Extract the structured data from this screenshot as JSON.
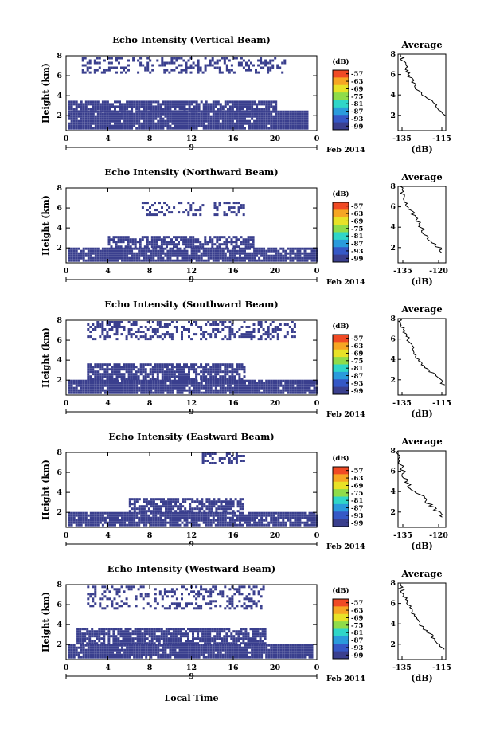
{
  "shared": {
    "x_ticks": [
      "0",
      "4",
      "8",
      "12",
      "16",
      "20",
      "0"
    ],
    "day_label": "9",
    "date_label": "Feb 2014",
    "y_label": "Height (km)",
    "y_ticks": [
      "2",
      "4",
      "6",
      "8"
    ],
    "unit": "(dB)",
    "colorbar_ticks": [
      "-57",
      "-63",
      "-69",
      "-75",
      "-81",
      "-87",
      "-93",
      "-99"
    ],
    "colorbar_colors": [
      "#f04a24",
      "#f6a623",
      "#e8e227",
      "#8fdc4a",
      "#2fd6c8",
      "#2a9bdc",
      "#3558c6",
      "#3a3f8e"
    ],
    "avg_title": "Average",
    "x_axis_title": "Local Time",
    "echo_color": "#3a3f8e"
  },
  "chart_data": [
    {
      "type": "heatmap",
      "title": "Echo Intensity (Vertical Beam)",
      "xlim": [
        0,
        24
      ],
      "ylim": [
        0.5,
        8
      ],
      "layers": [
        {
          "t0": 0.2,
          "t1": 23.0,
          "h0": 0.6,
          "h1": 2.3,
          "p": 0.95
        },
        {
          "t0": 0.2,
          "t1": 20.0,
          "h0": 2.3,
          "h1": 3.3,
          "p": 0.85
        },
        {
          "t0": 1.5,
          "t1": 21.0,
          "h0": 6.2,
          "h1": 7.8,
          "p": 0.35
        }
      ],
      "average": {
        "x_ticks": [
          "-135",
          "-115"
        ],
        "xlim": [
          -137,
          -113
        ],
        "profile": [
          [
            2.0,
            -114
          ],
          [
            2.8,
            -117
          ],
          [
            3.5,
            -121
          ],
          [
            4.2,
            -126
          ],
          [
            5.0,
            -129
          ],
          [
            5.8,
            -131
          ],
          [
            6.5,
            -133
          ],
          [
            7.3,
            -134
          ],
          [
            8.0,
            -136
          ]
        ]
      }
    },
    {
      "type": "heatmap",
      "title": "Echo Intensity (Northward Beam)",
      "xlim": [
        0,
        24
      ],
      "ylim": [
        0.5,
        8
      ],
      "layers": [
        {
          "t0": 0.2,
          "t1": 24.0,
          "h0": 0.6,
          "h1": 2.0,
          "p": 0.9
        },
        {
          "t0": 4.0,
          "t1": 18.0,
          "h0": 2.0,
          "h1": 3.2,
          "p": 0.75
        },
        {
          "t0": 7.0,
          "t1": 17.0,
          "h0": 5.2,
          "h1": 6.5,
          "p": 0.3
        }
      ],
      "average": {
        "x_ticks": [
          "-135",
          "-120"
        ],
        "xlim": [
          -137,
          -117
        ],
        "profile": [
          [
            1.5,
            -118
          ],
          [
            2.2,
            -121
          ],
          [
            3.0,
            -125
          ],
          [
            3.8,
            -127
          ],
          [
            4.6,
            -129
          ],
          [
            5.4,
            -131
          ],
          [
            6.2,
            -133
          ],
          [
            7.0,
            -135
          ],
          [
            8.0,
            -136
          ]
        ]
      }
    },
    {
      "type": "heatmap",
      "title": "Echo Intensity (Southward Beam)",
      "xlim": [
        0,
        24
      ],
      "ylim": [
        0.5,
        8
      ],
      "layers": [
        {
          "t0": 0.2,
          "t1": 24.0,
          "h0": 0.6,
          "h1": 2.0,
          "p": 0.95
        },
        {
          "t0": 2.0,
          "t1": 17.0,
          "h0": 2.0,
          "h1": 3.6,
          "p": 0.8
        },
        {
          "t0": 2.0,
          "t1": 22.0,
          "h0": 6.0,
          "h1": 7.8,
          "p": 0.4
        }
      ],
      "average": {
        "x_ticks": [
          "-135",
          "-115"
        ],
        "xlim": [
          -137,
          -113
        ],
        "profile": [
          [
            1.5,
            -114
          ],
          [
            2.4,
            -118
          ],
          [
            3.2,
            -123
          ],
          [
            4.0,
            -127
          ],
          [
            4.8,
            -129
          ],
          [
            5.6,
            -131
          ],
          [
            6.4,
            -133
          ],
          [
            7.2,
            -135
          ],
          [
            8.0,
            -136
          ]
        ]
      }
    },
    {
      "type": "heatmap",
      "title": "Echo Intensity (Eastward Beam)",
      "xlim": [
        0,
        24
      ],
      "ylim": [
        0.5,
        8
      ],
      "layers": [
        {
          "t0": 0.2,
          "t1": 24.0,
          "h0": 0.6,
          "h1": 2.0,
          "p": 0.9
        },
        {
          "t0": 6.0,
          "t1": 17.0,
          "h0": 2.0,
          "h1": 3.4,
          "p": 0.75
        },
        {
          "t0": 13.0,
          "t1": 17.0,
          "h0": 6.8,
          "h1": 7.9,
          "p": 0.45
        }
      ],
      "average": {
        "x_ticks": [
          "-135",
          "-120"
        ],
        "xlim": [
          -137,
          -117
        ],
        "profile": [
          [
            1.5,
            -118
          ],
          [
            2.2,
            -121
          ],
          [
            3.0,
            -125
          ],
          [
            3.8,
            -128
          ],
          [
            4.4,
            -132
          ],
          [
            5.2,
            -134
          ],
          [
            6.0,
            -135
          ],
          [
            7.0,
            -136
          ],
          [
            8.0,
            -137
          ]
        ]
      }
    },
    {
      "type": "heatmap",
      "title": "Echo Intensity (Westward Beam)",
      "xlim": [
        0,
        24
      ],
      "ylim": [
        0.5,
        8
      ],
      "layers": [
        {
          "t0": 0.2,
          "t1": 23.5,
          "h0": 0.6,
          "h1": 2.0,
          "p": 0.95
        },
        {
          "t0": 1.0,
          "t1": 19.0,
          "h0": 2.0,
          "h1": 3.6,
          "p": 0.8
        },
        {
          "t0": 2.0,
          "t1": 19.0,
          "h0": 5.5,
          "h1": 7.8,
          "p": 0.35
        }
      ],
      "average": {
        "x_ticks": [
          "-135",
          "-115"
        ],
        "xlim": [
          -137,
          -113
        ],
        "profile": [
          [
            1.5,
            -114
          ],
          [
            2.4,
            -118
          ],
          [
            3.2,
            -122
          ],
          [
            4.0,
            -126
          ],
          [
            4.8,
            -129
          ],
          [
            5.6,
            -131
          ],
          [
            6.4,
            -133
          ],
          [
            7.2,
            -135
          ],
          [
            8.0,
            -136
          ]
        ]
      }
    }
  ]
}
